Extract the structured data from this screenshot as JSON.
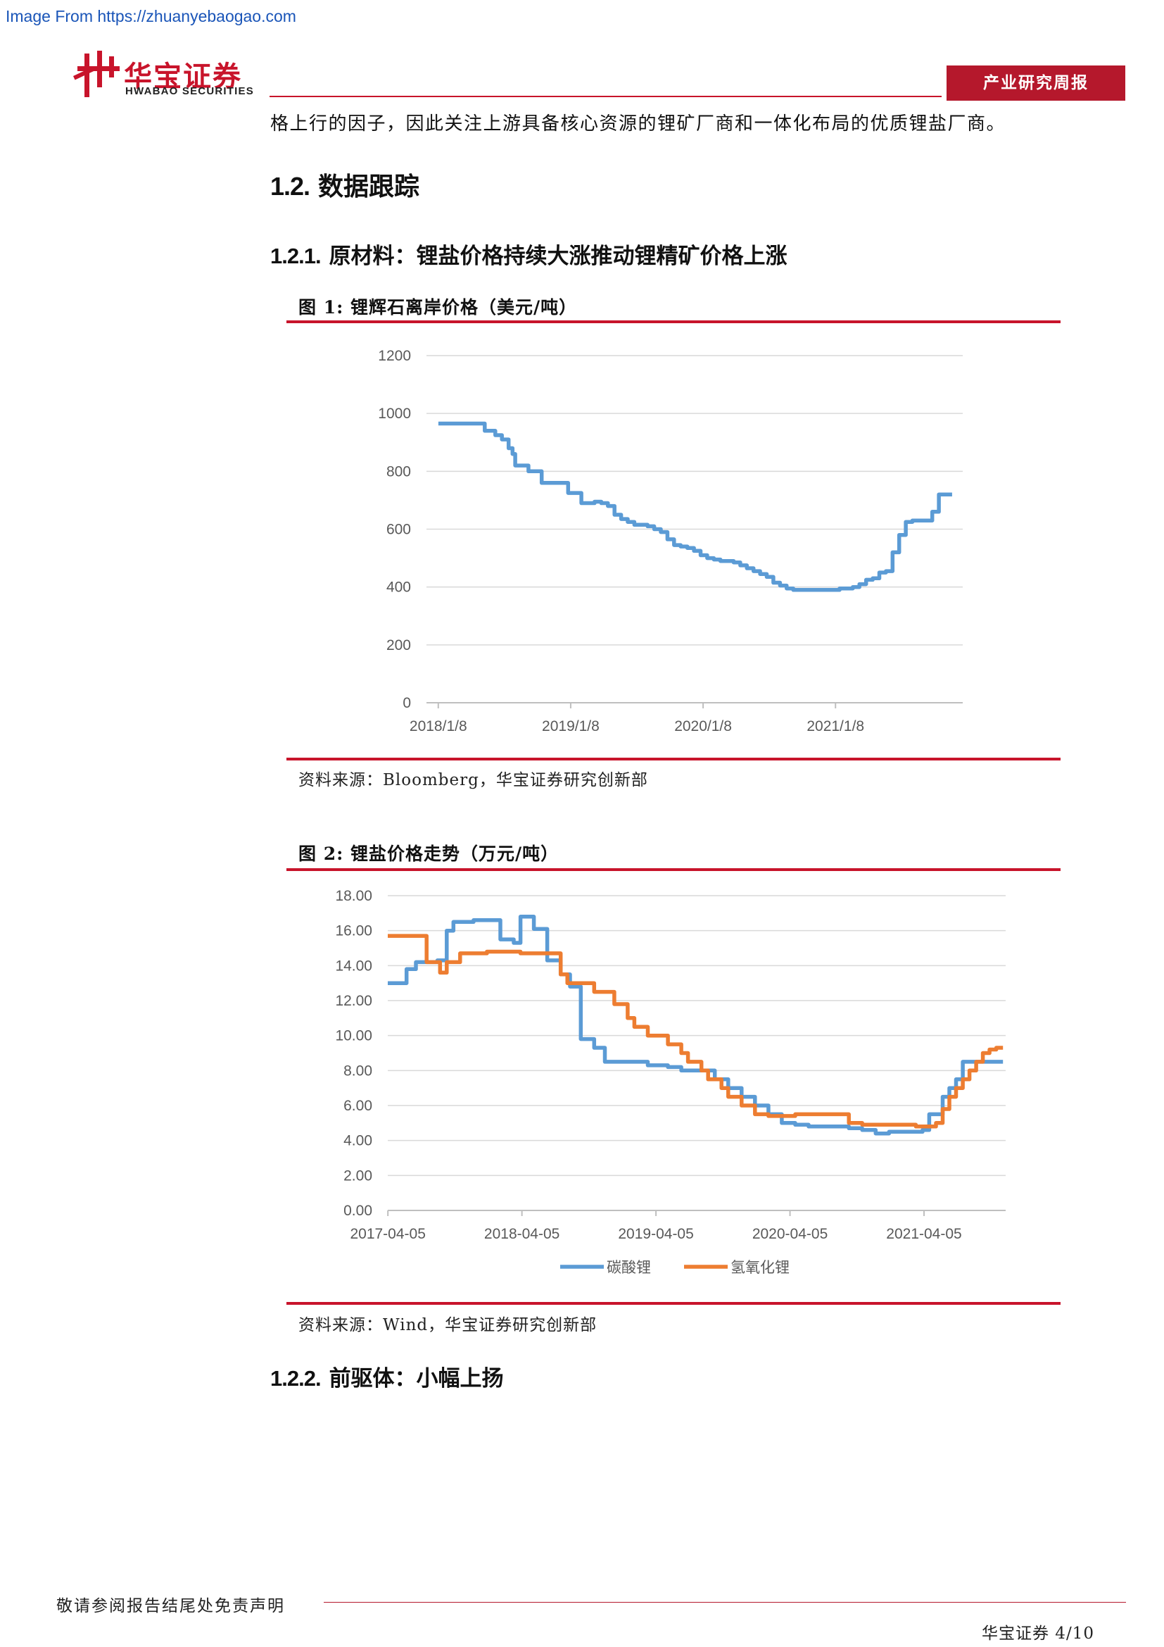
{
  "source_link": "Image From https://zhuanyebaogao.com",
  "header": {
    "logo_cn": "华宝证券",
    "logo_en": "HWABAO SECURITIES",
    "report_type": "产业研究周报"
  },
  "intro_line": "格上行的因子，因此关注上游具备核心资源的锂矿厂商和一体化布局的优质锂盐厂商。",
  "section_1_2": {
    "num": "1.2.",
    "title": "数据跟踪"
  },
  "section_1_2_1": {
    "num": "1.2.1.",
    "title": "原材料：锂盐价格持续大涨推动锂精矿价格上涨"
  },
  "figure1": {
    "title": "图 1:  锂辉石离岸价格（美元/吨）",
    "source": "资料来源：Bloomberg，华宝证券研究创新部"
  },
  "figure2": {
    "title": "图 2:  锂盐价格走势（万元/吨）",
    "source": "资料来源：Wind，华宝证券研究创新部"
  },
  "section_1_2_2": {
    "num": "1.2.2.",
    "title": "前驱体：小幅上扬"
  },
  "footer": {
    "disclaimer": "敬请参阅报告结尾处免责声明",
    "page": "华宝证券 4/10"
  },
  "colors": {
    "brand_red": "#c8142b",
    "series_blue": "#5b9bd5",
    "series_orange": "#ed7d31"
  },
  "chart_data": [
    {
      "type": "line",
      "title": "锂辉石离岸价格（美元/吨）",
      "ylim": [
        0,
        1200
      ],
      "y_ticks": [
        "1200",
        "1000",
        "800",
        "600",
        "400",
        "200",
        "0"
      ],
      "x_ticks": [
        "2018/1/8",
        "2019/1/8",
        "2020/1/8",
        "2021/1/8"
      ],
      "grid": true,
      "series": [
        {
          "color": "#5b9bd5",
          "x": [
            2018.02,
            2018.35,
            2018.37,
            2018.45,
            2018.5,
            2018.55,
            2018.58,
            2018.6,
            2018.7,
            2018.75,
            2018.78,
            2018.8,
            2018.85,
            2018.9,
            2019.0,
            2019.02,
            2019.1,
            2019.15,
            2019.2,
            2019.25,
            2019.3,
            2019.35,
            2019.4,
            2019.45,
            2019.5,
            2019.6,
            2019.65,
            2019.7,
            2019.75,
            2019.8,
            2019.85,
            2019.9,
            2019.95,
            2020.0,
            2020.05,
            2020.1,
            2020.15,
            2020.2,
            2020.25,
            2020.3,
            2020.35,
            2020.4,
            2020.45,
            2020.5,
            2020.55,
            2020.6,
            2020.65,
            2020.7,
            2020.75,
            2020.8,
            2020.9,
            2020.95,
            2021.0,
            2021.05,
            2021.1,
            2021.15,
            2021.2,
            2021.25,
            2021.3,
            2021.35,
            2021.4,
            2021.45,
            2021.5,
            2021.55,
            2021.6,
            2021.7,
            2021.75,
            2021.8,
            2021.85,
            2021.9
          ],
          "values": [
            965,
            965,
            940,
            925,
            910,
            880,
            860,
            820,
            800,
            800,
            800,
            760,
            760,
            760,
            725,
            725,
            690,
            690,
            695,
            690,
            680,
            650,
            635,
            625,
            615,
            610,
            600,
            590,
            565,
            545,
            540,
            535,
            525,
            510,
            500,
            495,
            490,
            490,
            485,
            475,
            465,
            455,
            445,
            435,
            415,
            405,
            395,
            390,
            390,
            390,
            390,
            390,
            390,
            395,
            395,
            400,
            410,
            425,
            430,
            450,
            455,
            520,
            580,
            625,
            630,
            630,
            660,
            720,
            720,
            720
          ]
        }
      ]
    },
    {
      "type": "line",
      "title": "锂盐价格走势（万元/吨）",
      "ylim": [
        0,
        18
      ],
      "y_ticks": [
        "18.00",
        "16.00",
        "14.00",
        "12.00",
        "10.00",
        "8.00",
        "6.00",
        "4.00",
        "2.00",
        "0.00"
      ],
      "x_ticks": [
        "2017-04-05",
        "2018-04-05",
        "2019-04-05",
        "2020-04-05",
        "2021-04-05"
      ],
      "grid": true,
      "legend_position": "bottom",
      "series": [
        {
          "name": "碳酸锂",
          "color": "#5b9bd5",
          "x": [
            2017.26,
            2017.33,
            2017.4,
            2017.47,
            2017.55,
            2017.63,
            2017.7,
            2017.75,
            2017.8,
            2017.9,
            2018.0,
            2018.1,
            2018.2,
            2018.25,
            2018.3,
            2018.35,
            2018.45,
            2018.55,
            2018.62,
            2018.7,
            2018.8,
            2018.88,
            2018.95,
            2019.02,
            2019.1,
            2019.2,
            2019.35,
            2019.45,
            2019.55,
            2019.65,
            2019.7,
            2019.8,
            2019.9,
            2020.0,
            2020.1,
            2020.2,
            2020.3,
            2020.4,
            2020.5,
            2020.6,
            2020.7,
            2020.8,
            2020.9,
            2021.0,
            2021.1,
            2021.2,
            2021.25,
            2021.3,
            2021.4,
            2021.45,
            2021.5,
            2021.55,
            2021.6,
            2021.7,
            2021.8,
            2021.85
          ],
          "values": [
            13.0,
            13.0,
            13.8,
            14.2,
            14.2,
            14.3,
            16.0,
            16.5,
            16.5,
            16.6,
            16.6,
            15.5,
            15.3,
            16.8,
            16.8,
            16.1,
            14.3,
            13.5,
            12.8,
            9.8,
            9.3,
            8.5,
            8.5,
            8.5,
            8.5,
            8.3,
            8.2,
            8.0,
            8.0,
            8.0,
            7.5,
            7.0,
            6.5,
            6.0,
            5.5,
            5.0,
            4.9,
            4.8,
            4.8,
            4.8,
            4.7,
            4.6,
            4.4,
            4.5,
            4.5,
            4.5,
            4.6,
            5.5,
            6.5,
            7.0,
            7.5,
            8.5,
            8.5,
            8.5,
            8.5,
            8.5
          ]
        },
        {
          "name": "氢氧化锂",
          "color": "#ed7d31",
          "x": [
            2017.26,
            2017.5,
            2017.55,
            2017.63,
            2017.65,
            2017.7,
            2017.75,
            2017.8,
            2018.0,
            2018.25,
            2018.3,
            2018.4,
            2018.55,
            2018.6,
            2018.7,
            2018.8,
            2018.95,
            2019.05,
            2019.1,
            2019.2,
            2019.3,
            2019.35,
            2019.45,
            2019.5,
            2019.6,
            2019.65,
            2019.75,
            2019.8,
            2019.9,
            2020.0,
            2020.1,
            2020.2,
            2020.3,
            2020.4,
            2020.5,
            2020.6,
            2020.7,
            2020.75,
            2020.8,
            2020.9,
            2021.0,
            2021.1,
            2021.2,
            2021.3,
            2021.35,
            2021.4,
            2021.45,
            2021.5,
            2021.55,
            2021.6,
            2021.65,
            2021.7,
            2021.75,
            2021.8,
            2021.85
          ],
          "values": [
            15.7,
            15.7,
            14.2,
            14.2,
            13.6,
            14.2,
            14.2,
            14.7,
            14.8,
            14.7,
            14.7,
            14.7,
            13.5,
            13.0,
            13.0,
            12.5,
            11.8,
            11.0,
            10.5,
            10.0,
            10.0,
            9.5,
            9.0,
            8.5,
            8.0,
            7.5,
            7.0,
            6.5,
            6.0,
            5.5,
            5.4,
            5.4,
            5.5,
            5.5,
            5.5,
            5.5,
            5.0,
            5.0,
            4.9,
            4.9,
            4.9,
            4.9,
            4.8,
            4.8,
            5.0,
            5.8,
            6.5,
            7.0,
            7.5,
            8.0,
            8.5,
            9.0,
            9.2,
            9.3,
            9.3
          ]
        }
      ]
    }
  ]
}
